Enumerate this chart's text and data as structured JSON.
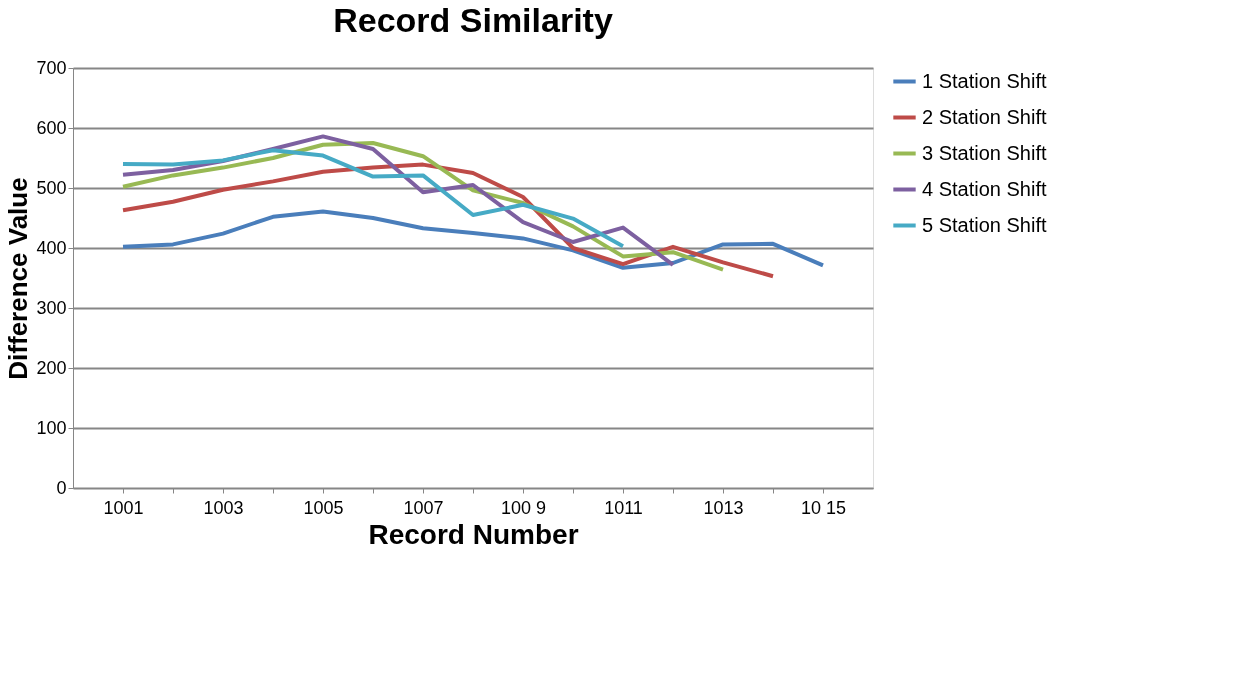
{
  "chart_data": {
    "type": "line",
    "title": "Record Similarity",
    "xlabel": "Record Number",
    "ylabel": "Difference Value",
    "categories": [
      "1001",
      null,
      "1003",
      null,
      "1005",
      null,
      "1007",
      null,
      "100 9",
      null,
      "1011",
      null,
      "1013",
      null,
      "10 15"
    ],
    "ylim": [
      0,
      700
    ],
    "yticks": [
      0,
      100,
      200,
      300,
      400,
      500,
      600,
      700
    ],
    "grid": "y",
    "legend": "right",
    "marker": "none",
    "line_style": "solid",
    "series": [
      {
        "name": "1 Station Shift",
        "color": "#4a7ebb",
        "values": [
          402,
          406,
          424,
          452,
          461,
          450,
          433,
          425,
          416,
          396,
          367,
          375,
          406,
          407,
          371
        ]
      },
      {
        "name": "2 Station Shift",
        "color": "#be4b48",
        "values": [
          463,
          477,
          497,
          511,
          527,
          534,
          539,
          525,
          485,
          400,
          373,
          402,
          376,
          353,
          null
        ]
      },
      {
        "name": "3 Station Shift",
        "color": "#98b954",
        "values": [
          502,
          521,
          534,
          550,
          572,
          575,
          553,
          496,
          475,
          436,
          386,
          393,
          364,
          null,
          null
        ]
      },
      {
        "name": "4 Station Shift",
        "color": "#7d60a0",
        "values": [
          522,
          530,
          545,
          565,
          586,
          565,
          493,
          505,
          443,
          410,
          434,
          372,
          null,
          null,
          null
        ]
      },
      {
        "name": "5 Station Shift",
        "color": "#46aac5",
        "values": [
          540,
          539,
          546,
          563,
          554,
          519,
          521,
          455,
          472,
          449,
          403,
          null,
          null,
          null,
          null
        ]
      }
    ]
  }
}
